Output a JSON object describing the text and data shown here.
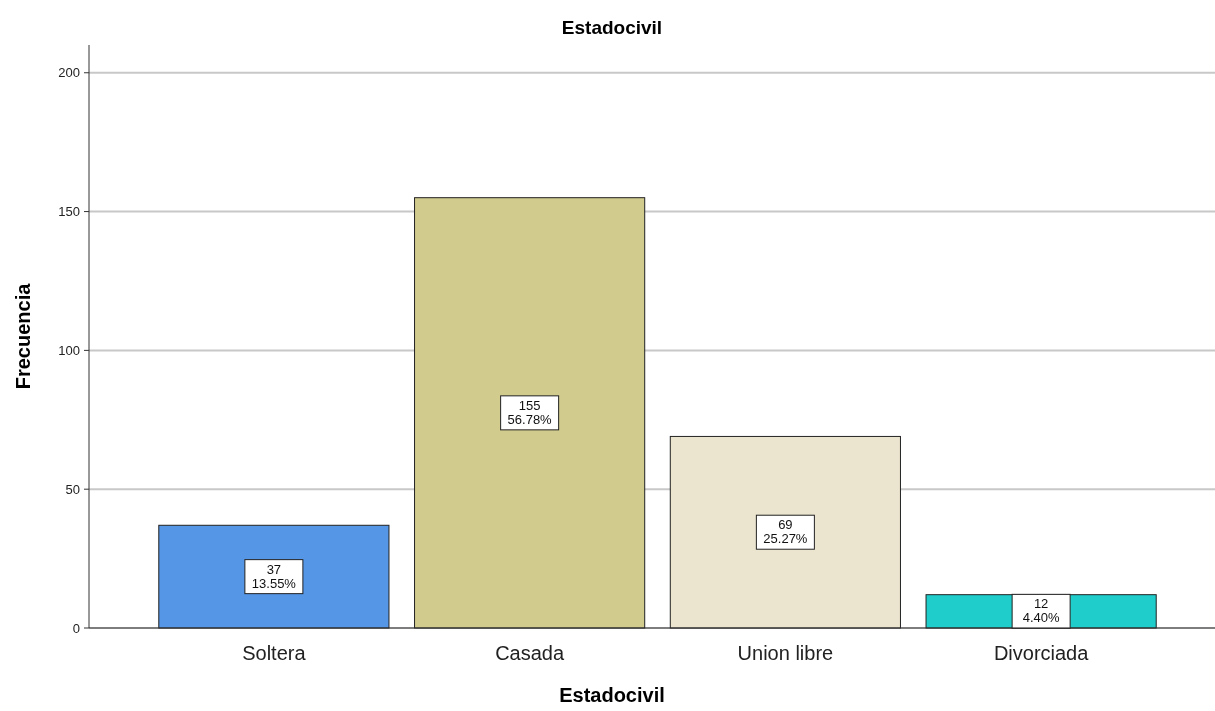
{
  "chart_data": {
    "type": "bar",
    "title": "Estadocivil",
    "xlabel": "Estadocivil",
    "ylabel": "Frecuencia",
    "categories": [
      "Soltera",
      "Casada",
      "Union libre",
      "Divorciada"
    ],
    "values": [
      37,
      155,
      69,
      12
    ],
    "colors": [
      "#5596e6",
      "#d1cb8e",
      "#ebe5cf",
      "#1fcecb"
    ],
    "value_labels": [
      "37\n13.55%",
      "155\n56.78%",
      "69\n25.27%",
      "12\n4.40%"
    ],
    "ylim": [
      0,
      210
    ],
    "yticks": [
      0,
      50,
      100,
      150,
      200
    ],
    "grid": "y"
  }
}
